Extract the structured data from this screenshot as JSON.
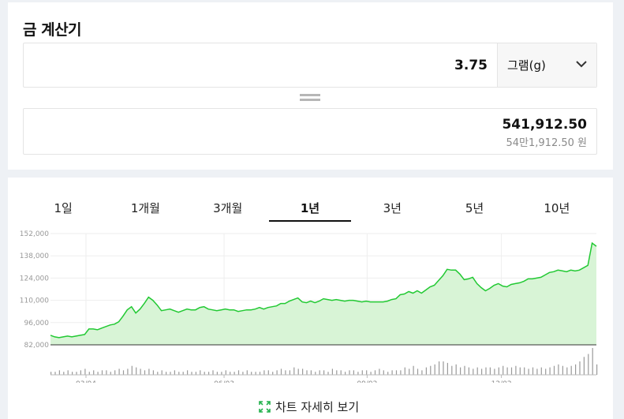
{
  "title": "금 계산기",
  "quantity": "3.75",
  "unit": "그램(g)",
  "result": "541,912.50",
  "result_korean": "54만1,912.50 원",
  "tabs": [
    {
      "label": "1일"
    },
    {
      "label": "1개월"
    },
    {
      "label": "3개월"
    },
    {
      "label": "1년"
    },
    {
      "label": "3년"
    },
    {
      "label": "5년"
    },
    {
      "label": "10년"
    }
  ],
  "active_tab": "1년",
  "detail_link": "차트 자세히 보기",
  "colors": {
    "line": "#22c933",
    "fill": "#d8f4d6",
    "accent": "#22b14c",
    "grid": "#eeeeee"
  },
  "chart_data": {
    "type": "area",
    "ylim": [
      82000,
      152000
    ],
    "y_ticks": [
      "152,000",
      "138,000",
      "124,000",
      "110,000",
      "96,000",
      "82,000"
    ],
    "x_ticks": [
      "03/04",
      "06/03",
      "09/02",
      "12/02"
    ],
    "series": [
      {
        "values": [
          88000,
          87000,
          86500,
          87000,
          87500,
          87000,
          87500,
          88000,
          88500,
          92000,
          92000,
          91500,
          92500,
          93500,
          94500,
          95000,
          96500,
          100000,
          104000,
          106000,
          102000,
          104500,
          108000,
          112000,
          110000,
          107000,
          103500,
          104000,
          104500,
          103500,
          102500,
          103500,
          104500,
          104000,
          104000,
          105500,
          106000,
          104500,
          104000,
          103500,
          104000,
          104500,
          104000,
          104000,
          103000,
          103500,
          104000,
          104000,
          104500,
          105500,
          104500,
          105500,
          106000,
          106500,
          108000,
          108000,
          109500,
          110500,
          111500,
          109000,
          108500,
          109500,
          108500,
          109500,
          111000,
          110500,
          110000,
          110500,
          110000,
          109500,
          110000,
          110000,
          109500,
          109000,
          109500,
          109000,
          109000,
          109000,
          109000,
          109500,
          110500,
          111000,
          113500,
          114000,
          115500,
          114500,
          116000,
          114500,
          116500,
          118500,
          119500,
          122500,
          125500,
          129500,
          129000,
          129000,
          126500,
          123000,
          123500,
          124500,
          120500,
          118000,
          116000,
          117500,
          119500,
          120500,
          119000,
          118500,
          120000,
          120500,
          121000,
          122000,
          123500,
          123500,
          124000,
          124500,
          126000,
          127500,
          128000,
          129000,
          128500,
          128000,
          129000,
          128500,
          129000,
          130500,
          132000,
          146000,
          144000
        ]
      }
    ],
    "volume": [
      2,
      2,
      3,
      2,
      3,
      2,
      2,
      3,
      4,
      2,
      3,
      2,
      3,
      3,
      2,
      3,
      4,
      3,
      4,
      6,
      5,
      4,
      3,
      4,
      3,
      2,
      3,
      2,
      2,
      3,
      2,
      2,
      3,
      2,
      2,
      3,
      2,
      2,
      3,
      2,
      2,
      3,
      2,
      2,
      3,
      2,
      3,
      2,
      2,
      2,
      3,
      3,
      2,
      3,
      4,
      3,
      3,
      5,
      4,
      4,
      3,
      3,
      2,
      3,
      3,
      2,
      4,
      3,
      3,
      2,
      3,
      3,
      2,
      3,
      3,
      2,
      3,
      4,
      3,
      2,
      3,
      3,
      3,
      5,
      4,
      6,
      4,
      3,
      5,
      6,
      7,
      9,
      9,
      8,
      6,
      7,
      5,
      6,
      5,
      4,
      5,
      4,
      5,
      5,
      4,
      5,
      6,
      5,
      5,
      6,
      5,
      5,
      4,
      5,
      4,
      5,
      4,
      5,
      6,
      7,
      6,
      5,
      6,
      7,
      9,
      12,
      14,
      18,
      7
    ]
  }
}
